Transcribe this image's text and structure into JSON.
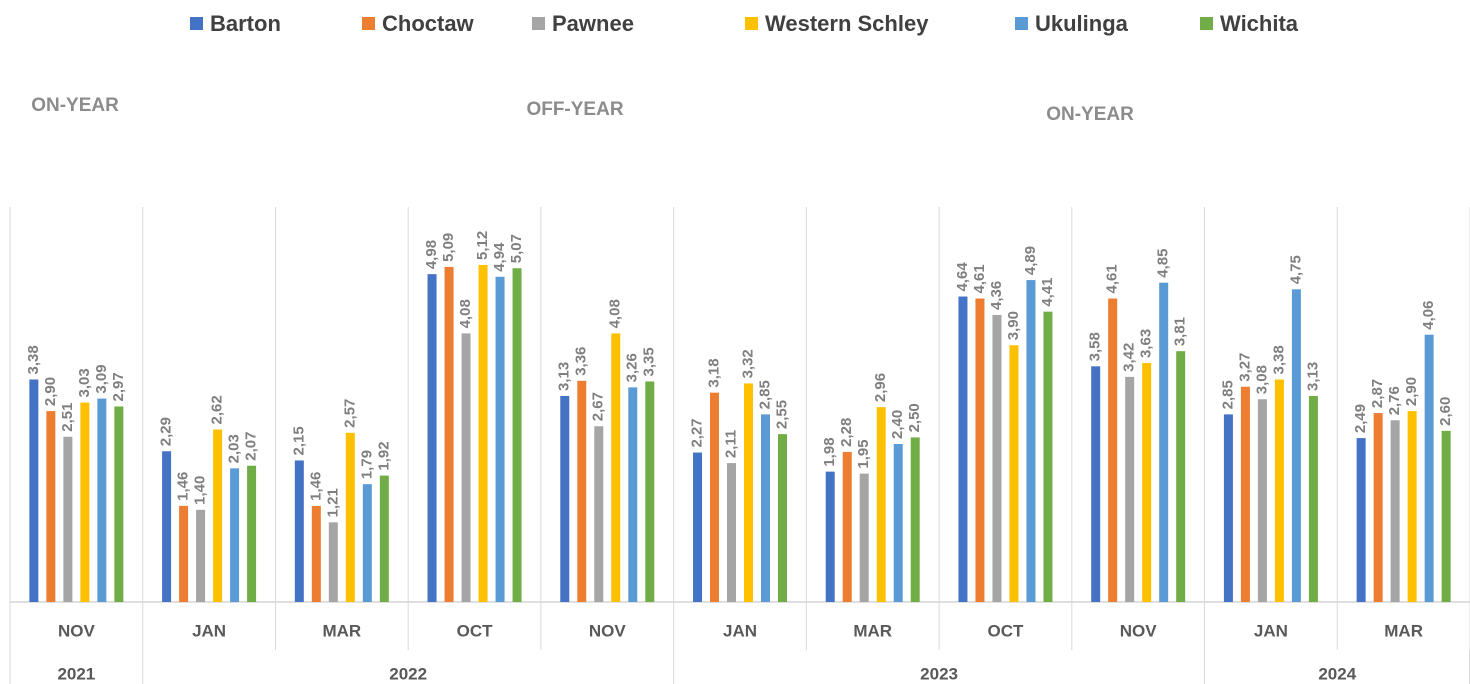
{
  "chart_data": {
    "type": "bar",
    "annotations": [
      "ON-YEAR",
      "OFF-YEAR",
      "ON-YEAR"
    ],
    "categories": [
      "NOV",
      "JAN",
      "MAR",
      "OCT",
      "NOV",
      "JAN",
      "MAR",
      "OCT",
      "NOV",
      "JAN",
      "MAR"
    ],
    "years": [
      "2021",
      "2022",
      "2022",
      "2022",
      "2022",
      "2023",
      "2023",
      "2023",
      "2023",
      "2024",
      "2024"
    ],
    "ylim": [
      0,
      6
    ],
    "legend": "top",
    "series": [
      {
        "name": "Barton",
        "color": "#4472c4",
        "values": [
          3.38,
          2.29,
          2.15,
          4.98,
          3.13,
          2.27,
          1.98,
          4.64,
          3.58,
          2.85,
          2.49
        ],
        "value_labels": [
          "3,38",
          "2,29",
          "2,15",
          "4,98",
          "3,13",
          "2,27",
          "1,98",
          "4,64",
          "3,58",
          "2,85",
          "2,49"
        ]
      },
      {
        "name": "Choctaw",
        "color": "#ed7d31",
        "values": [
          2.9,
          1.46,
          1.46,
          5.09,
          3.36,
          3.18,
          2.28,
          4.61,
          4.61,
          3.27,
          2.87
        ],
        "value_labels": [
          "2,90",
          "1,46",
          "1,46",
          "5,09",
          "3,36",
          "3,18",
          "2,28",
          "4,61",
          "4,61",
          "3,27",
          "2,87"
        ]
      },
      {
        "name": "Pawnee",
        "color": "#a5a5a5",
        "values": [
          2.51,
          1.4,
          1.21,
          4.08,
          2.67,
          2.11,
          1.95,
          4.36,
          3.42,
          3.08,
          2.76
        ],
        "value_labels": [
          "2,51",
          "1,40",
          "1,21",
          "4,08",
          "2,67",
          "2,11",
          "1,95",
          "4,36",
          "3,42",
          "3,08",
          "2,76"
        ]
      },
      {
        "name": "Western Schley",
        "color": "#ffc000",
        "values": [
          3.03,
          2.62,
          2.57,
          5.12,
          4.08,
          3.32,
          2.96,
          3.9,
          3.63,
          3.38,
          2.9
        ],
        "value_labels": [
          "3,03",
          "2,62",
          "2,57",
          "5,12",
          "4,08",
          "3,32",
          "2,96",
          "3,90",
          "3,63",
          "3,38",
          "2,90"
        ]
      },
      {
        "name": "Ukulinga",
        "color": "#5b9bd5",
        "values": [
          3.09,
          2.03,
          1.79,
          4.94,
          3.26,
          2.85,
          2.4,
          4.89,
          4.85,
          4.75,
          4.06
        ],
        "value_labels": [
          "3,09",
          "2,03",
          "1,79",
          "4,94",
          "3,26",
          "2,85",
          "2,40",
          "4,89",
          "4,85",
          "4,75",
          "4,06"
        ]
      },
      {
        "name": "Wichita",
        "color": "#70ad47",
        "values": [
          2.97,
          2.07,
          1.92,
          5.07,
          3.35,
          2.55,
          2.5,
          4.41,
          3.81,
          3.13,
          2.6
        ],
        "value_labels": [
          "2,97",
          "2,07",
          "1,92",
          "5,07",
          "3,35",
          "2,55",
          "2,50",
          "4,41",
          "3,81",
          "3,13",
          "2,60"
        ]
      }
    ]
  }
}
